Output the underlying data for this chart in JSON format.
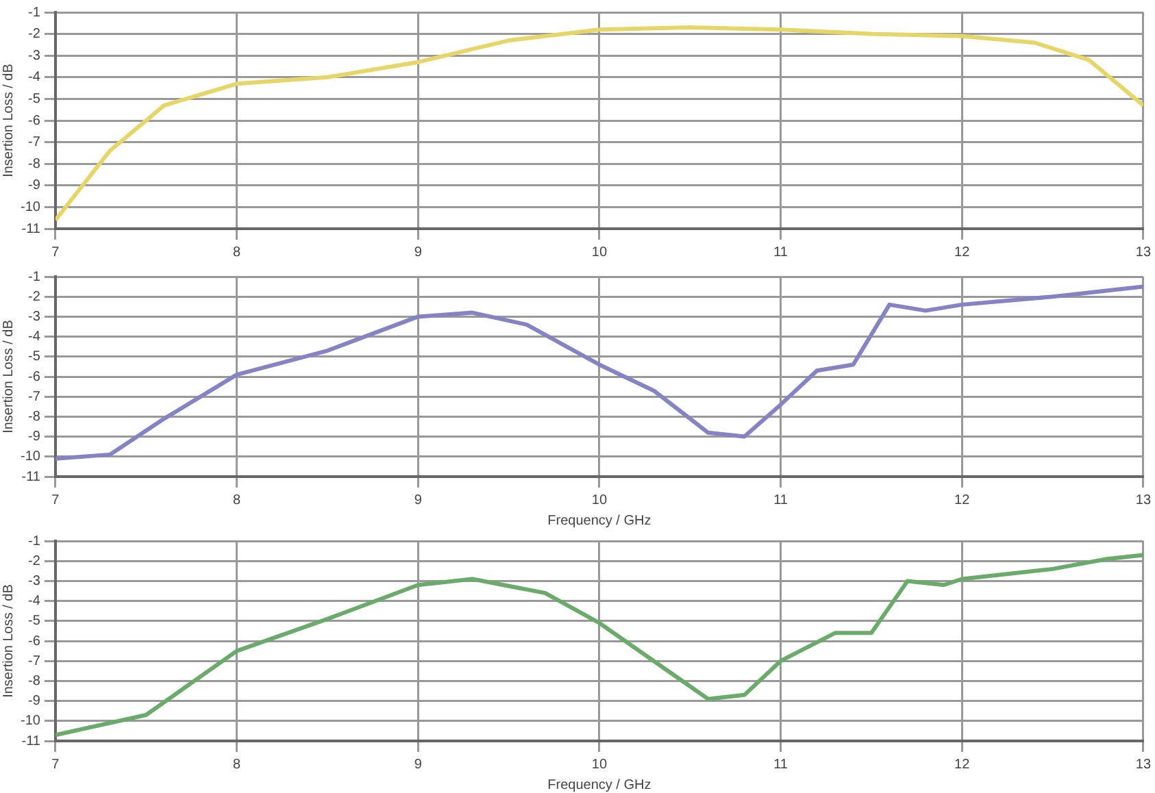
{
  "chart_data": [
    {
      "type": "line",
      "ylabel": "Insertion Loss / dB",
      "xlim": [
        7,
        13
      ],
      "xticks": [
        7,
        8,
        9,
        10,
        11,
        12,
        13
      ],
      "ylim": [
        -11,
        -1
      ],
      "yticks": [
        -1,
        -2,
        -3,
        -4,
        -5,
        -6,
        -7,
        -8,
        -9,
        -10,
        -11
      ],
      "grid": true,
      "legend": false,
      "marker": "none",
      "line_style": "solid",
      "series": [
        {
          "color": "#e6d66a",
          "x": [
            7,
            7.3,
            7.6,
            8,
            8.5,
            9,
            9.5,
            10,
            10.5,
            11,
            11.5,
            12,
            12.4,
            12.7,
            13
          ],
          "values": [
            -10.6,
            -7.4,
            -5.3,
            -4.3,
            -4.0,
            -3.3,
            -2.3,
            -1.8,
            -1.7,
            -1.8,
            -2.0,
            -2.1,
            -2.4,
            -3.2,
            -5.3
          ]
        }
      ]
    },
    {
      "type": "line",
      "xlabel": "Frequency / GHz",
      "ylabel": "Insertion Loss / dB",
      "xlim": [
        7,
        13
      ],
      "xticks": [
        7,
        8,
        9,
        10,
        11,
        12,
        13
      ],
      "ylim": [
        -11,
        -1
      ],
      "yticks": [
        -1,
        -2,
        -3,
        -4,
        -5,
        -6,
        -7,
        -8,
        -9,
        -10,
        -11
      ],
      "grid": true,
      "legend": false,
      "marker": "none",
      "line_style": "solid",
      "series": [
        {
          "color": "#8484c4",
          "x": [
            7,
            7.3,
            7.6,
            8,
            8.5,
            9,
            9.3,
            9.6,
            10,
            10.3,
            10.6,
            10.8,
            11,
            11.2,
            11.4,
            11.6,
            11.8,
            12,
            12.5,
            13
          ],
          "values": [
            -10.1,
            -9.9,
            -8.1,
            -5.9,
            -4.7,
            -3.0,
            -2.8,
            -3.4,
            -5.4,
            -6.7,
            -8.8,
            -9.0,
            -7.4,
            -5.7,
            -5.4,
            -2.4,
            -2.7,
            -2.4,
            -2.0,
            -1.5
          ]
        }
      ]
    },
    {
      "type": "line",
      "xlabel": "Frequency / GHz",
      "ylabel": "Insertion Loss / dB",
      "xlim": [
        7,
        13
      ],
      "xticks": [
        7,
        8,
        9,
        10,
        11,
        12,
        13
      ],
      "ylim": [
        -11,
        -1
      ],
      "yticks": [
        -1,
        -2,
        -3,
        -4,
        -5,
        -6,
        -7,
        -8,
        -9,
        -10,
        -11
      ],
      "grid": true,
      "legend": false,
      "marker": "none",
      "line_style": "solid",
      "series": [
        {
          "color": "#6aaa6a",
          "x": [
            7,
            7.5,
            8,
            8.5,
            9,
            9.3,
            9.7,
            10,
            10.3,
            10.6,
            10.8,
            11,
            11.3,
            11.5,
            11.7,
            11.9,
            12,
            12.5,
            12.8,
            13
          ],
          "values": [
            -10.7,
            -9.7,
            -6.5,
            -4.9,
            -3.2,
            -2.9,
            -3.6,
            -5.1,
            -7.0,
            -8.9,
            -8.7,
            -7.0,
            -5.6,
            -5.6,
            -3.0,
            -3.2,
            -2.9,
            -2.4,
            -1.9,
            -1.7
          ]
        }
      ]
    }
  ]
}
